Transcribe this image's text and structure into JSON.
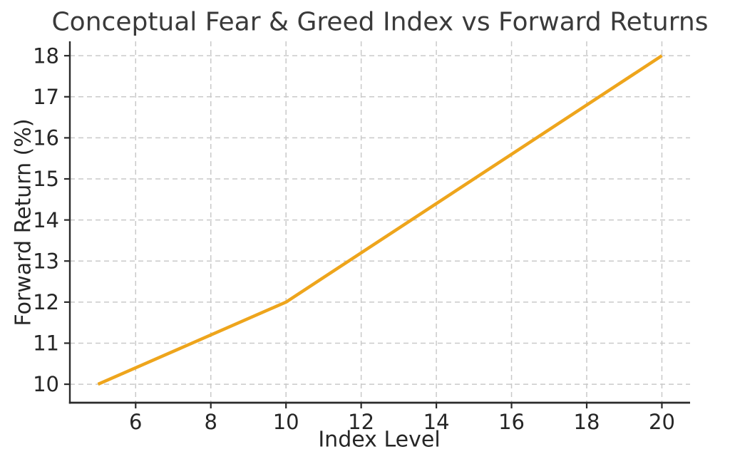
{
  "chart_data": {
    "type": "line",
    "title": "Conceptual Fear & Greed Index vs Forward Returns",
    "xlabel": "Index Level",
    "ylabel": "Forward Return (%)",
    "x": [
      5,
      10,
      15,
      20
    ],
    "y": [
      10,
      12,
      15,
      18
    ],
    "xlim": [
      4.25,
      20.75
    ],
    "ylim": [
      9.55,
      18.35
    ],
    "xticks": [
      6,
      8,
      10,
      12,
      14,
      16,
      18,
      20
    ],
    "yticks": [
      10,
      11,
      12,
      13,
      14,
      15,
      16,
      17,
      18
    ],
    "grid": true,
    "grid_style": "dashed",
    "legend": "none",
    "line_color": "#EEA51C",
    "grid_color": "#c9c9c9",
    "spine_color": "#2a2a2a",
    "tick_text_color": "#262626",
    "title_color": "#3a3a3a",
    "background_color": "#ffffff"
  }
}
